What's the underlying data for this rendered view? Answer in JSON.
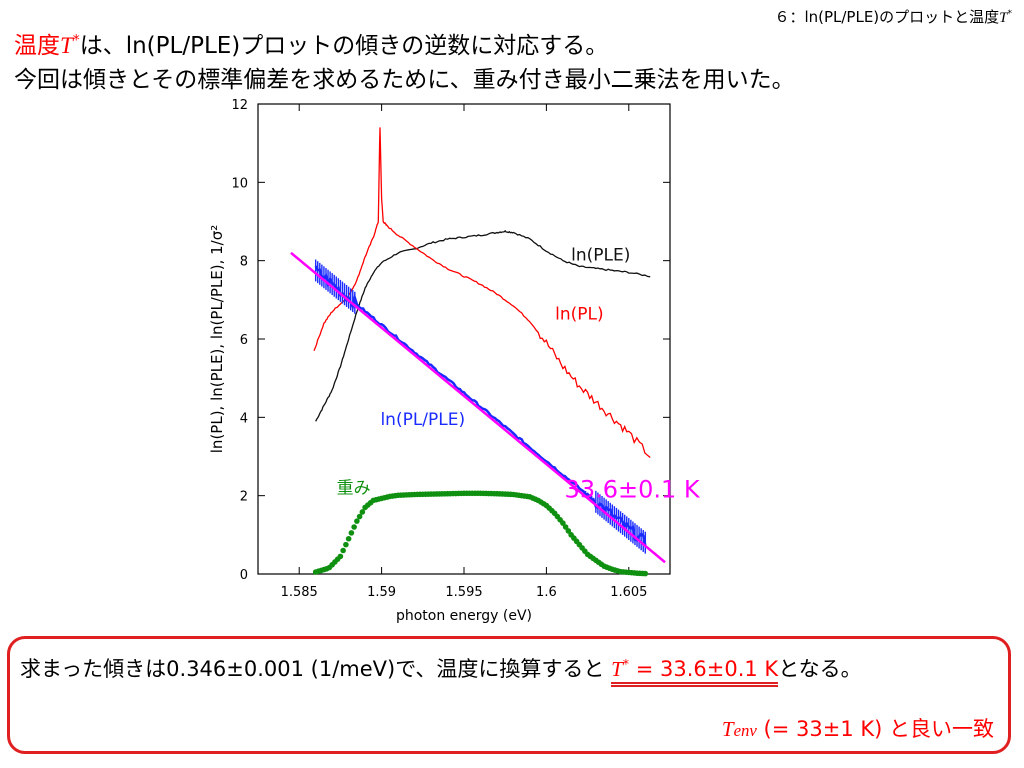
{
  "slide_label": {
    "prefix": "６：ln(PL/PLE)のプロットと温度",
    "t_symbol": "T",
    "superscript": "*"
  },
  "header": {
    "line1_red": "温度",
    "t_symbol": "T",
    "superscript": "*",
    "line1_rest": "は、ln(PL/PLE)プロットの傾きの逆数に対応する。",
    "line2": "今回は傾きとその標準偏差を求めるために、重み付き最小二乗法を用いた。"
  },
  "result_box": {
    "line1_prefix": "求まった傾きは0.346±0.001 (1/meV)で、温度に換算すると ",
    "t_symbol": "T",
    "superscript": "*",
    "line1_value": " = 33.6±0.1 K",
    "line1_suffix": "となる。",
    "env_symbol": "T",
    "env_subscript": "env",
    "env_value": " (= 33±1 K) と良い一致"
  },
  "colors": {
    "red": "#ff0000",
    "black": "#111111",
    "blue": "#1a2cff",
    "magenta": "#ff00ff",
    "green": "#109010",
    "box_border": "#e02020"
  },
  "chart_data": {
    "type": "line",
    "xlabel": "photon energy (eV)",
    "ylabel": "ln(PL), ln(PLE), ln(PL/PLE), 1/σ²",
    "xlim": [
      1.5825,
      1.6075
    ],
    "ylim": [
      0,
      12
    ],
    "x_ticks": [
      1.585,
      1.59,
      1.595,
      1.6,
      1.605
    ],
    "x_tick_labels": [
      "1.585",
      "1.59",
      "1.595",
      "1.6",
      "1.605"
    ],
    "y_ticks": [
      0,
      2,
      4,
      6,
      8,
      10,
      12
    ],
    "y_tick_labels": [
      "0",
      "2",
      "4",
      "6",
      "8",
      "10",
      "12"
    ],
    "grid": false,
    "series": [
      {
        "name": "ln(PLE)",
        "color": "#111111",
        "x": [
          1.586,
          1.5865,
          1.587,
          1.5875,
          1.588,
          1.5885,
          1.589,
          1.5895,
          1.59,
          1.591,
          1.592,
          1.593,
          1.594,
          1.595,
          1.596,
          1.597,
          1.5975,
          1.598,
          1.599,
          1.6,
          1.601,
          1.602,
          1.603,
          1.604,
          1.605,
          1.6063
        ],
        "y": [
          3.9,
          4.3,
          4.7,
          5.3,
          6.0,
          6.7,
          7.3,
          7.7,
          7.95,
          8.2,
          8.3,
          8.45,
          8.55,
          8.6,
          8.65,
          8.72,
          8.75,
          8.72,
          8.55,
          8.25,
          8.0,
          7.85,
          7.8,
          7.75,
          7.7,
          7.6
        ]
      },
      {
        "name": "ln(PL)",
        "color": "#ff0000",
        "x": [
          1.5859,
          1.5865,
          1.587,
          1.5875,
          1.588,
          1.5885,
          1.589,
          1.5895,
          1.5898,
          1.5899,
          1.59,
          1.5901,
          1.5903,
          1.591,
          1.592,
          1.593,
          1.594,
          1.595,
          1.596,
          1.597,
          1.598,
          1.599,
          1.6,
          1.601,
          1.602,
          1.603,
          1.604,
          1.605,
          1.6063
        ],
        "y": [
          5.7,
          6.4,
          6.7,
          6.9,
          7.1,
          7.5,
          8.1,
          8.6,
          9.0,
          11.4,
          9.6,
          9.0,
          8.9,
          8.65,
          8.35,
          8.05,
          7.8,
          7.6,
          7.4,
          7.15,
          6.85,
          6.45,
          5.9,
          5.3,
          4.8,
          4.4,
          4.0,
          3.6,
          3.0
        ]
      },
      {
        "name": "ln(PL/PLE)",
        "color": "#1a2cff",
        "x": [
          1.586,
          1.606
        ],
        "y": [
          7.75,
          0.8
        ]
      },
      {
        "name": "33.6±0.1 K",
        "color": "#ff00ff",
        "x": [
          1.5845,
          1.6072
        ],
        "y": [
          8.2,
          0.3
        ]
      },
      {
        "name": "重み",
        "color": "#109010",
        "x": [
          1.586,
          1.5868,
          1.5875,
          1.588,
          1.5885,
          1.589,
          1.5895,
          1.59,
          1.5905,
          1.591,
          1.592,
          1.593,
          1.594,
          1.595,
          1.596,
          1.597,
          1.598,
          1.599,
          1.5995,
          1.6,
          1.6005,
          1.601,
          1.6015,
          1.602,
          1.6025,
          1.603,
          1.6035,
          1.604,
          1.6045,
          1.605,
          1.6055,
          1.606
        ],
        "y": [
          0.05,
          0.15,
          0.45,
          0.9,
          1.35,
          1.7,
          1.88,
          1.93,
          1.98,
          2.01,
          2.03,
          2.04,
          2.05,
          2.06,
          2.06,
          2.05,
          2.03,
          1.97,
          1.88,
          1.75,
          1.55,
          1.3,
          1.0,
          0.75,
          0.5,
          0.35,
          0.2,
          0.12,
          0.06,
          0.04,
          0.02,
          0.01
        ]
      }
    ],
    "annotations": [
      {
        "text": "ln(PLE)",
        "x": 1.6033,
        "y": 8.0,
        "color": "#111111"
      },
      {
        "text": "ln(PL)",
        "x": 1.602,
        "y": 6.5,
        "color": "#ff0000"
      },
      {
        "text": "ln(PL/PLE)",
        "x": 1.5925,
        "y": 3.8,
        "color": "#1a2cff"
      },
      {
        "text": "重み",
        "x": 1.5883,
        "y": 2.05,
        "color": "#109010"
      },
      {
        "text": "33.6±0.1 K",
        "x": 1.6052,
        "y": 1.95,
        "color": "#ff00ff"
      }
    ]
  }
}
